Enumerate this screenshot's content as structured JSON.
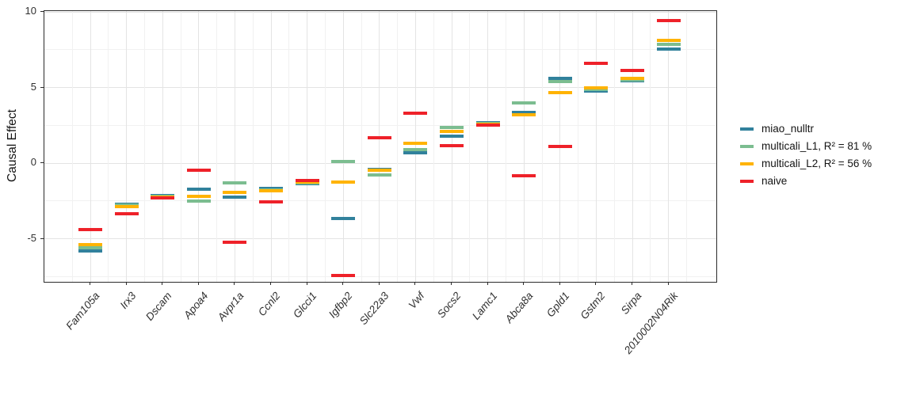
{
  "figure": {
    "background": "#ffffff"
  },
  "chart_data": {
    "type": "scatter",
    "marker": "horizontal-dash",
    "title": "",
    "xlabel": "",
    "ylabel": "Causal Effect",
    "ylim": [
      -7.9,
      10.1
    ],
    "yticks": [
      10,
      5,
      0,
      -5
    ],
    "yticks_minor": [
      7.5,
      2.5,
      -2.5,
      -7.5
    ],
    "grid": "major+minor on, light gray",
    "legend_position": "right-middle",
    "panel_border": "#2b2b2b",
    "categories": [
      "Fam105a",
      "Irx3",
      "Dscam",
      "Apoa4",
      "Avpr1a",
      "Ccnl2",
      "Glcci1",
      "Igfbp2",
      "Slc22a3",
      "Vwf",
      "Socs2",
      "Lamc1",
      "Abca8a",
      "Gpld1",
      "Gstm2",
      "Sirpa",
      "2010002N04Rik"
    ],
    "series": [
      {
        "name": "miao_nulltr",
        "color": "#31819c",
        "values": [
          -5.8,
          -2.7,
          -2.15,
          -1.75,
          -2.25,
          -1.7,
          -1.35,
          -3.65,
          -0.4,
          0.7,
          1.8,
          2.65,
          3.35,
          5.6,
          4.75,
          5.45,
          7.55
        ]
      },
      {
        "name": "multicali_L1, R² = 81 %",
        "color": "#7cbd90",
        "values": [
          -5.6,
          -2.8,
          -2.2,
          -2.5,
          -1.3,
          -1.8,
          -1.3,
          0.1,
          -0.8,
          0.9,
          2.35,
          2.6,
          4.0,
          5.4,
          4.85,
          5.5,
          7.85
        ]
      },
      {
        "name": "multicali_L2, R² = 56 %",
        "color": "#ffb303",
        "values": [
          -5.4,
          -2.9,
          -2.25,
          -2.2,
          -1.95,
          -1.85,
          -1.25,
          -1.25,
          -0.45,
          1.3,
          2.1,
          2.55,
          3.2,
          4.65,
          4.95,
          5.6,
          8.1
        ]
      },
      {
        "name": "naive",
        "color": "#ee2129",
        "values": [
          -4.4,
          -3.35,
          -2.3,
          -0.45,
          -5.25,
          -2.55,
          -1.15,
          -7.45,
          1.65,
          3.3,
          1.15,
          2.5,
          -0.85,
          1.1,
          6.6,
          6.15,
          9.4
        ]
      }
    ]
  }
}
